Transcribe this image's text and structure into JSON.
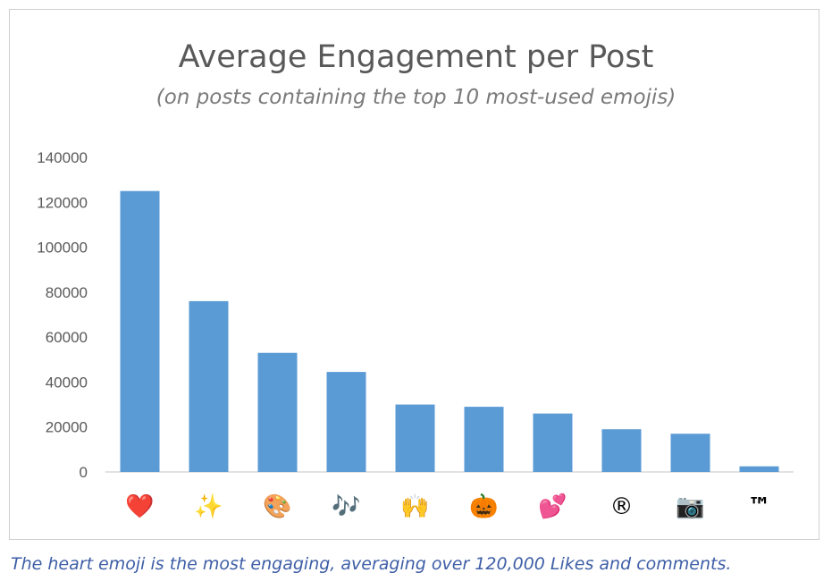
{
  "chart_data": {
    "type": "bar",
    "title": "Average Engagement per Post",
    "subtitle": "(on posts containing the top 10 most-used emojis)",
    "categories": [
      "❤️",
      "✨",
      "🎨",
      "🎶",
      "🙌",
      "🎃",
      "💕",
      "®",
      "📷",
      "™"
    ],
    "category_labels": [
      "heart",
      "sparkles",
      "artist palette",
      "musical notes",
      "raised hands",
      "jack-o-lantern",
      "two hearts",
      "registered",
      "camera",
      "TM"
    ],
    "values": [
      125000,
      76000,
      53000,
      44500,
      30000,
      29000,
      26000,
      19000,
      17000,
      2500
    ],
    "yticks": [
      0,
      20000,
      40000,
      60000,
      80000,
      100000,
      120000,
      140000
    ],
    "ylim": [
      0,
      140000
    ],
    "xlabel": "",
    "ylabel": "",
    "grid": false,
    "bar_color": "#5b9bd5"
  },
  "caption": "The heart emoji is the most engaging, averaging over 120,000 Likes and comments."
}
